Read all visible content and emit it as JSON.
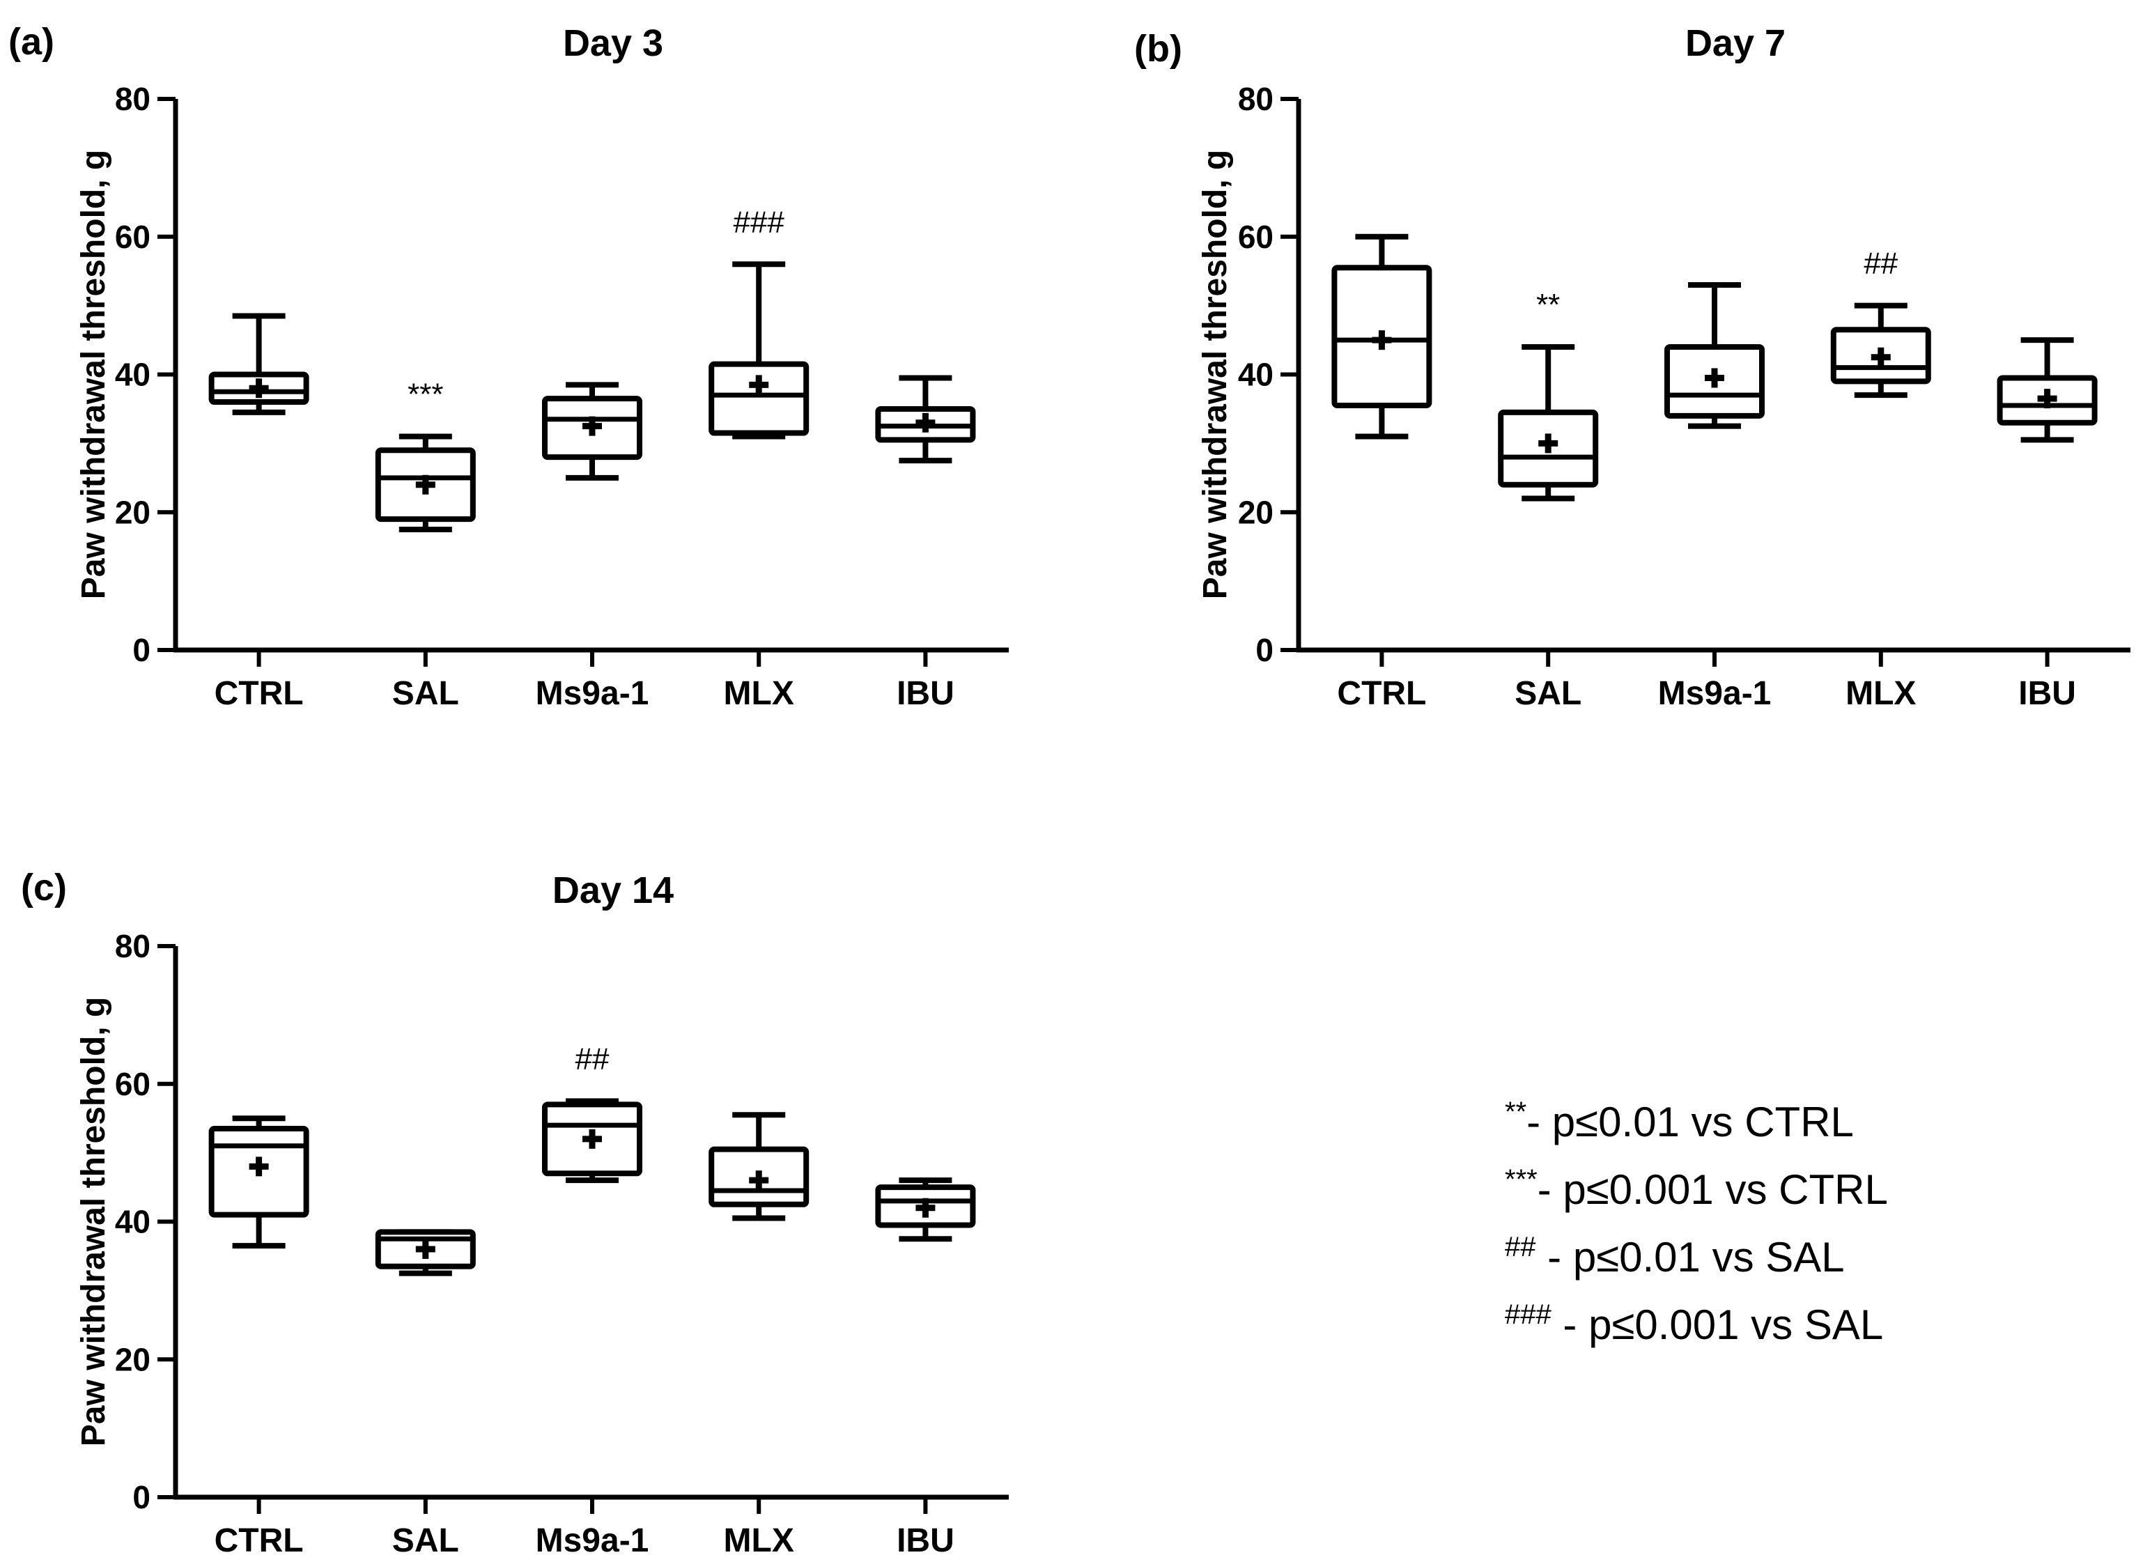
{
  "chart_data": [
    {
      "type": "box",
      "panel_label": "(a)",
      "title": "Day 3",
      "xlabel": "",
      "ylabel": "Paw withdrawal threshold, g",
      "ylim": [
        0,
        80
      ],
      "yticks": [
        "0",
        "20",
        "40",
        "60",
        "80"
      ],
      "categories": [
        "CTRL",
        "SAL",
        "Ms9a-1",
        "MLX",
        "IBU"
      ],
      "boxes": [
        {
          "min": 34.5,
          "q1": 36,
          "median": 37.5,
          "q3": 40,
          "max": 48.5,
          "mean": 38,
          "sig": ""
        },
        {
          "min": 17.5,
          "q1": 19,
          "median": 25,
          "q3": 29,
          "max": 31,
          "mean": 24,
          "sig": "***"
        },
        {
          "min": 25,
          "q1": 28,
          "median": 33.5,
          "q3": 36.5,
          "max": 38.5,
          "mean": 32.5,
          "sig": ""
        },
        {
          "min": 31,
          "q1": 31.5,
          "median": 37,
          "q3": 41.5,
          "max": 56,
          "mean": 38.5,
          "sig": "###"
        },
        {
          "min": 27.5,
          "q1": 30.5,
          "median": 32.5,
          "q3": 35,
          "max": 39.5,
          "mean": 33,
          "sig": ""
        }
      ]
    },
    {
      "type": "box",
      "panel_label": "(b)",
      "title": "Day 7",
      "xlabel": "",
      "ylabel": "Paw withdrawal threshold, g",
      "ylim": [
        0,
        80
      ],
      "yticks": [
        "0",
        "20",
        "40",
        "60",
        "80"
      ],
      "categories": [
        "CTRL",
        "SAL",
        "Ms9a-1",
        "MLX",
        "IBU"
      ],
      "boxes": [
        {
          "min": 31,
          "q1": 35.5,
          "median": 45,
          "q3": 55.5,
          "max": 60,
          "mean": 45,
          "sig": ""
        },
        {
          "min": 22,
          "q1": 24,
          "median": 28,
          "q3": 34.5,
          "max": 44,
          "mean": 30,
          "sig": "**"
        },
        {
          "min": 32.5,
          "q1": 34,
          "median": 37,
          "q3": 44,
          "max": 53,
          "mean": 39.5,
          "sig": ""
        },
        {
          "min": 37,
          "q1": 39,
          "median": 41,
          "q3": 46.5,
          "max": 50,
          "mean": 42.5,
          "sig": "##"
        },
        {
          "min": 30.5,
          "q1": 33,
          "median": 35.5,
          "q3": 39.5,
          "max": 45,
          "mean": 36.5,
          "sig": ""
        }
      ]
    },
    {
      "type": "box",
      "panel_label": "(c)",
      "title": "Day 14",
      "xlabel": "",
      "ylabel": "Paw withdrawal threshold, g",
      "ylim": [
        0,
        80
      ],
      "yticks": [
        "0",
        "20",
        "40",
        "60",
        "80"
      ],
      "categories": [
        "CTRL",
        "SAL",
        "Ms9a-1",
        "MLX",
        "IBU"
      ],
      "boxes": [
        {
          "min": 36.5,
          "q1": 41,
          "median": 51,
          "q3": 53.5,
          "max": 55,
          "mean": 48,
          "sig": ""
        },
        {
          "min": 32.5,
          "q1": 33.5,
          "median": 37.5,
          "q3": 38.5,
          "max": 38.5,
          "mean": 36,
          "sig": ""
        },
        {
          "min": 46,
          "q1": 47,
          "median": 54,
          "q3": 57,
          "max": 57.5,
          "mean": 52,
          "sig": "##"
        },
        {
          "min": 40.5,
          "q1": 42.5,
          "median": 44.5,
          "q3": 50.5,
          "max": 55.5,
          "mean": 46,
          "sig": ""
        },
        {
          "min": 37.5,
          "q1": 39.5,
          "median": 43,
          "q3": 45,
          "max": 46,
          "mean": 42,
          "sig": ""
        }
      ]
    }
  ],
  "legend": [
    {
      "symbol": "**",
      "text": "- p≤0.01 vs CTRL"
    },
    {
      "symbol": "***",
      "text": "- p≤0.001 vs CTRL"
    },
    {
      "symbol": "##",
      "text": " - p≤0.01 vs SAL"
    },
    {
      "symbol": "###",
      "text": " - p≤0.001 vs SAL"
    }
  ]
}
